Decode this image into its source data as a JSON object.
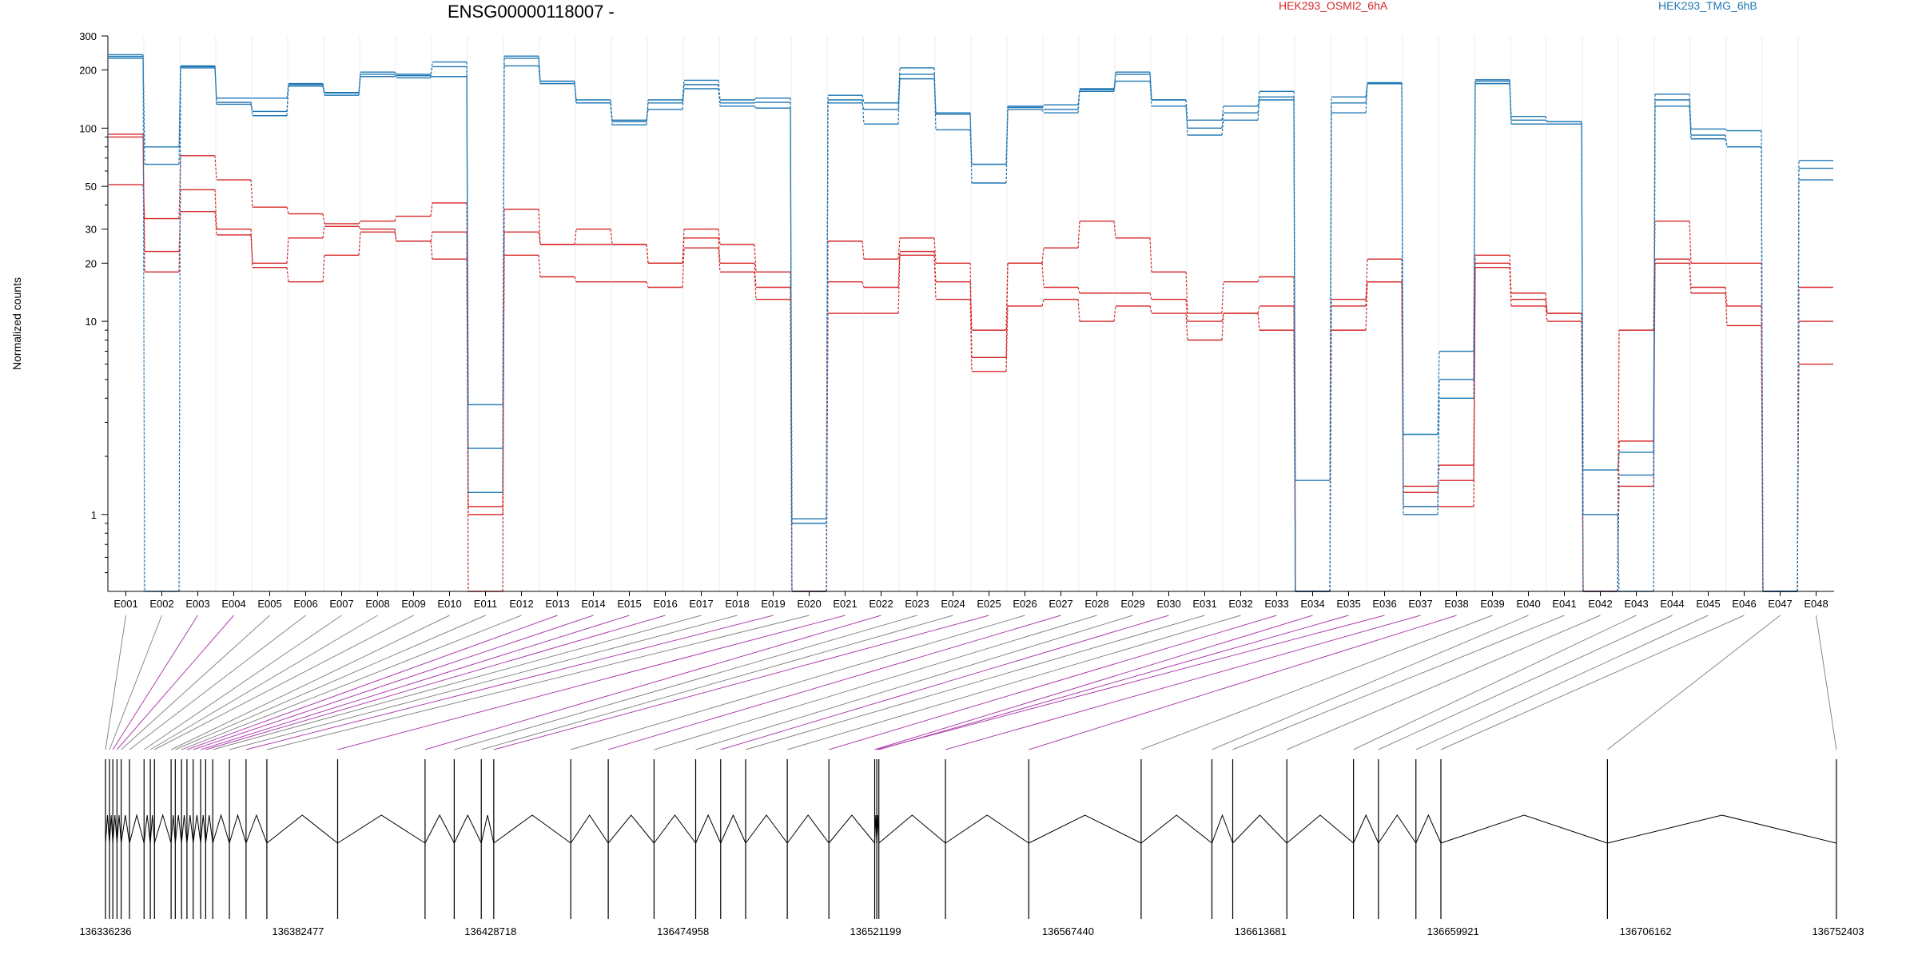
{
  "chart_data": {
    "type": "line",
    "title": "ENSG00000118007 -",
    "xlabel": "",
    "ylabel": "Normalized counts",
    "y_scale": "log",
    "ylim": [
      0.4,
      300
    ],
    "y_ticks": [
      "1",
      "10",
      "20",
      "30",
      "50",
      "100",
      "200",
      "300"
    ],
    "grid": "vertical",
    "legend_placement": "top",
    "colors": {
      "HEK293_OSMI2_6hA": "#d62728",
      "HEK293_TMG_6hB": "#1f77b4"
    },
    "categories": [
      "E001",
      "E002",
      "E003",
      "E004",
      "E005",
      "E006",
      "E007",
      "E008",
      "E009",
      "E010",
      "E011",
      "E012",
      "E013",
      "E014",
      "E015",
      "E016",
      "E017",
      "E018",
      "E019",
      "E020",
      "E021",
      "E022",
      "E023",
      "E024",
      "E025",
      "E026",
      "E027",
      "E028",
      "E029",
      "E030",
      "E031",
      "E032",
      "E033",
      "E034",
      "E035",
      "E036",
      "E037",
      "E038",
      "E039",
      "E040",
      "E041",
      "E042",
      "E043",
      "E044",
      "E045",
      "E046",
      "E047",
      "E048"
    ],
    "series": [
      {
        "name": "HEK293_OSMI2_6hA",
        "color": "#d62728",
        "values": [
          93,
          23,
          37,
          28,
          19,
          16,
          22,
          29,
          26,
          21,
          1.0,
          22,
          17,
          16,
          16,
          15,
          24,
          18,
          13,
          0.4,
          11,
          11,
          22,
          13,
          5.5,
          12,
          13,
          10,
          12,
          11,
          8,
          11,
          9,
          0.4,
          9,
          16,
          1.1,
          1.1,
          19,
          12,
          10,
          0.4,
          1.4,
          20,
          14,
          9.5,
          0.4,
          6
        ]
      },
      {
        "name": "HEK293_OSMI2_6hA",
        "color": "#d62728",
        "values": [
          90,
          18,
          48,
          30,
          20,
          27,
          31,
          30,
          26,
          29,
          1.1,
          29,
          25,
          25,
          25,
          20,
          27,
          20,
          15,
          0.4,
          16,
          15,
          23,
          16,
          9,
          20,
          15,
          14,
          14,
          13,
          10,
          11,
          12,
          0.4,
          13,
          16,
          1.4,
          1.8,
          20,
          14,
          11,
          0.4,
          2.4,
          21,
          15,
          12,
          0.4,
          10
        ]
      },
      {
        "name": "HEK293_OSMI2_6hA",
        "color": "#d62728",
        "values": [
          51,
          34,
          72,
          54,
          39,
          36,
          32,
          33,
          35,
          41,
          0.4,
          38,
          25,
          30,
          25,
          20,
          30,
          25,
          18,
          0.4,
          26,
          21,
          27,
          20,
          6.5,
          20,
          24,
          33,
          27,
          18,
          11,
          16,
          17,
          0.4,
          12,
          21,
          1.3,
          1.5,
          22,
          13,
          11,
          0.4,
          9,
          33,
          20,
          20,
          0.4,
          15
        ]
      },
      {
        "name": "HEK293_TMG_6hB",
        "color": "#1f77b4",
        "values": [
          235,
          0.4,
          208,
          133,
          116,
          165,
          148,
          190,
          182,
          220,
          2.2,
          230,
          175,
          140,
          110,
          125,
          160,
          130,
          127,
          0.4,
          135,
          125,
          180,
          120,
          52,
          125,
          120,
          160,
          190,
          140,
          100,
          120,
          140,
          0.4,
          120,
          170,
          1.0,
          4,
          170,
          110,
          108,
          1.0,
          0.4,
          130,
          92,
          80,
          0.4,
          54
        ]
      },
      {
        "name": "HEK293_TMG_6hB",
        "color": "#1f77b4",
        "values": [
          240,
          65,
          210,
          136,
          122,
          170,
          153,
          195,
          190,
          208,
          1.3,
          210,
          170,
          135,
          104,
          135,
          168,
          135,
          136,
          0.9,
          140,
          105,
          190,
          98,
          65,
          130,
          125,
          155,
          175,
          130,
          92,
          110,
          145,
          0.4,
          135,
          172,
          1.1,
          5,
          175,
          105,
          105,
          0.4,
          1.6,
          140,
          88,
          80,
          0.4,
          62
        ]
      },
      {
        "name": "HEK293_TMG_6hB",
        "color": "#1f77b4",
        "values": [
          230,
          80,
          205,
          143,
          143,
          168,
          152,
          185,
          187,
          185,
          3.7,
          236,
          175,
          135,
          108,
          140,
          177,
          140,
          143,
          0.95,
          148,
          135,
          205,
          118,
          65,
          128,
          132,
          158,
          195,
          140,
          110,
          130,
          155,
          1.5,
          145,
          170,
          2.6,
          7,
          178,
          115,
          108,
          1.7,
          2.1,
          150,
          99,
          97,
          0.4,
          68
        ]
      }
    ],
    "legend": [
      {
        "label": "HEK293_OSMI2_6hA",
        "color": "#d62728"
      },
      {
        "label": "HEK293_TMG_6hB",
        "color": "#1f77b4"
      }
    ],
    "coordinate_ticks": [
      "136336236",
      "136382477",
      "136428718",
      "136474958",
      "136521199",
      "136567440",
      "136613681",
      "136659921",
      "136706162",
      "136752403"
    ],
    "exon_starts": [
      136336236,
      136337200,
      136338000,
      136339000,
      136340000,
      136342000,
      136345500,
      136347000,
      136348000,
      136352000,
      136353000,
      136354500,
      136355800,
      136357300,
      136359100,
      136360300,
      136362000,
      136366000,
      136370000,
      136375000,
      136392000,
      136413000,
      136420000,
      136426500,
      136429500,
      136448000,
      136457000,
      136468000,
      136478000,
      136484000,
      136490000,
      136500000,
      136510000,
      136521000,
      136522000,
      136521500,
      136538000,
      136558000,
      136585000,
      136602000,
      136607000,
      136620000,
      136636000,
      136642000,
      136651000,
      136657000,
      136697000,
      136752000
    ],
    "highlight_links": [
      "E003",
      "E004",
      "E013",
      "E014",
      "E015",
      "E016",
      "E019",
      "E021",
      "E022",
      "E025",
      "E027",
      "E030",
      "E033",
      "E034",
      "E035",
      "E036",
      "E037",
      "E038"
    ]
  }
}
